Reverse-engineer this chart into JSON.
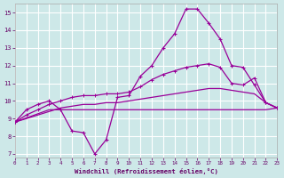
{
  "xlabel": "Windchill (Refroidissement éolien,°C)",
  "bg_color": "#cde8e8",
  "grid_color": "#ffffff",
  "line_color": "#990099",
  "x_ticks": [
    0,
    1,
    2,
    3,
    4,
    5,
    6,
    7,
    8,
    9,
    10,
    11,
    12,
    13,
    14,
    15,
    16,
    17,
    18,
    19,
    20,
    21,
    22,
    23
  ],
  "y_ticks": [
    7,
    8,
    9,
    10,
    11,
    12,
    13,
    14,
    15
  ],
  "xlim": [
    0,
    23
  ],
  "ylim": [
    6.8,
    15.5
  ],
  "line1_x": [
    0,
    1,
    2,
    3,
    4,
    5,
    6,
    7,
    8,
    9,
    10,
    11,
    12,
    13,
    14,
    15,
    16,
    17,
    18,
    19,
    20,
    21,
    22,
    23
  ],
  "line1_y": [
    8.8,
    9.5,
    9.8,
    10.0,
    9.5,
    8.3,
    8.2,
    7.0,
    7.8,
    10.2,
    10.3,
    11.4,
    12.0,
    13.0,
    13.8,
    15.2,
    15.2,
    14.4,
    13.5,
    12.0,
    11.9,
    10.9,
    9.9,
    9.6
  ],
  "line2_x": [
    0,
    1,
    2,
    3,
    4,
    5,
    6,
    7,
    8,
    9,
    10,
    11,
    12,
    13,
    14,
    15,
    16,
    17,
    18,
    19,
    20,
    21,
    22,
    23
  ],
  "line2_y": [
    8.8,
    9.2,
    9.5,
    9.8,
    10.0,
    10.2,
    10.3,
    10.3,
    10.4,
    10.4,
    10.5,
    10.8,
    11.2,
    11.5,
    11.7,
    11.9,
    12.0,
    12.1,
    11.9,
    11.0,
    10.9,
    11.3,
    9.9,
    9.6
  ],
  "line3_x": [
    0,
    1,
    2,
    3,
    4,
    5,
    6,
    7,
    8,
    9,
    10,
    11,
    12,
    13,
    14,
    15,
    16,
    17,
    18,
    19,
    20,
    21,
    22,
    23
  ],
  "line3_y": [
    8.8,
    9.0,
    9.2,
    9.4,
    9.6,
    9.7,
    9.8,
    9.8,
    9.9,
    9.9,
    10.0,
    10.1,
    10.2,
    10.3,
    10.4,
    10.5,
    10.6,
    10.7,
    10.7,
    10.6,
    10.5,
    10.4,
    9.9,
    9.6
  ],
  "line4_x": [
    0,
    3,
    4,
    9,
    10,
    11,
    12,
    13,
    14,
    15,
    16,
    17,
    18,
    19,
    20,
    21,
    22,
    23
  ],
  "line4_y": [
    8.8,
    9.5,
    9.5,
    9.5,
    9.5,
    9.5,
    9.5,
    9.5,
    9.5,
    9.5,
    9.5,
    9.5,
    9.5,
    9.5,
    9.5,
    9.5,
    9.5,
    9.6
  ]
}
